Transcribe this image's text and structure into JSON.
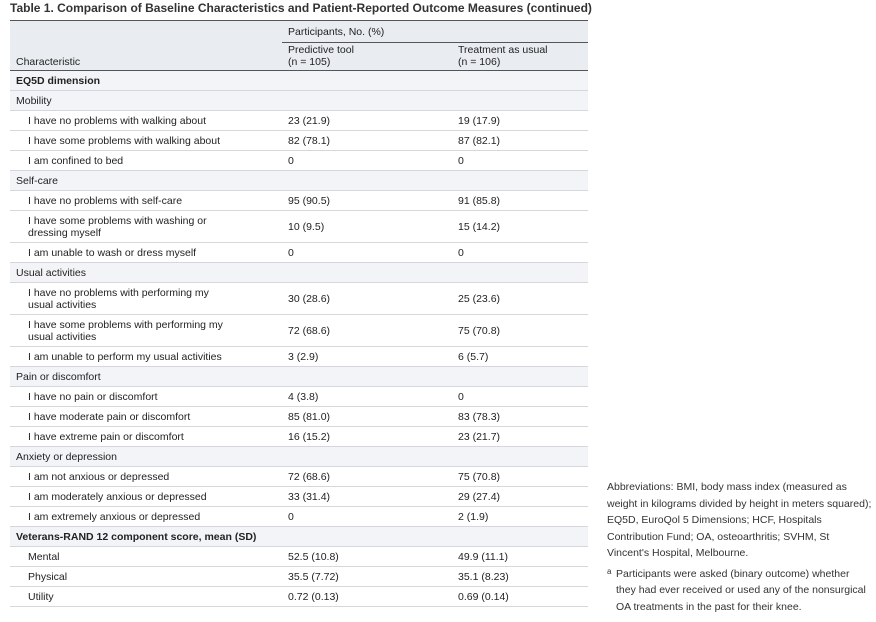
{
  "title": "Table 1. Comparison of Baseline Characteristics and Patient-Reported Outcome Measures (continued)",
  "table": {
    "header": {
      "characteristic": "Characteristic",
      "participants": "Participants, No. (%)",
      "columns": [
        {
          "name": "Predictive tool",
          "n": "(n = 105)"
        },
        {
          "name": "Treatment as usual",
          "n": "(n = 106)"
        }
      ]
    },
    "sections": [
      {
        "title": "EQ5D dimension",
        "groups": [
          {
            "title": "Mobility",
            "rows": [
              [
                "I have no problems with walking about",
                "23 (21.9)",
                "19 (17.9)"
              ],
              [
                "I have some problems with walking about",
                "82 (78.1)",
                "87 (82.1)"
              ],
              [
                "I am confined to bed",
                "0",
                "0"
              ]
            ]
          },
          {
            "title": "Self-care",
            "rows": [
              [
                "I have no problems with self-care",
                "95 (90.5)",
                "91 (85.8)"
              ],
              [
                "I have some problems with washing or\ndressing myself",
                "10 (9.5)",
                "15 (14.2)"
              ],
              [
                "I am unable to wash or dress myself",
                "0",
                "0"
              ]
            ]
          },
          {
            "title": "Usual activities",
            "rows": [
              [
                "I have no problems with performing my\nusual activities",
                "30 (28.6)",
                "25 (23.6)"
              ],
              [
                "I have some problems with performing my\nusual activities",
                "72 (68.6)",
                "75 (70.8)"
              ],
              [
                "I am unable to perform my usual activities",
                "3 (2.9)",
                "6 (5.7)"
              ]
            ]
          },
          {
            "title": "Pain or discomfort",
            "rows": [
              [
                "I have no pain or discomfort",
                "4 (3.8)",
                "0"
              ],
              [
                "I have moderate pain or discomfort",
                "85 (81.0)",
                "83 (78.3)"
              ],
              [
                "I have extreme pain or discomfort",
                "16 (15.2)",
                "23 (21.7)"
              ]
            ]
          },
          {
            "title": "Anxiety or depression",
            "rows": [
              [
                "I am not anxious or depressed",
                "72 (68.6)",
                "75 (70.8)"
              ],
              [
                "I am moderately anxious or depressed",
                "33 (31.4)",
                "29 (27.4)"
              ],
              [
                "I am extremely anxious or depressed",
                "0",
                "2 (1.9)"
              ]
            ]
          }
        ]
      },
      {
        "title": "Veterans-RAND 12 component score, mean (SD)",
        "rows": [
          [
            "Mental",
            "52.5 (10.8)",
            "49.9 (11.1)"
          ],
          [
            "Physical",
            "35.5 (7.72)",
            "35.1 (8.23)"
          ],
          [
            "Utility",
            "0.72 (0.13)",
            "0.69 (0.14)"
          ]
        ]
      }
    ]
  },
  "notes": {
    "abbreviations": "Abbreviations: BMI, body mass index (measured as weight in kilograms divided by height in meters squared); EQ5D, EuroQol 5 Dimensions; HCF, Hospitals Contribution Fund; OA, osteoarthritis; SVHM, St Vincent's Hospital, Melbourne.",
    "footnote_marker": "a",
    "footnote": "Participants were asked (binary outcome) whether they had ever received or used any of the nonsurgical OA treatments in the past for their knee."
  }
}
